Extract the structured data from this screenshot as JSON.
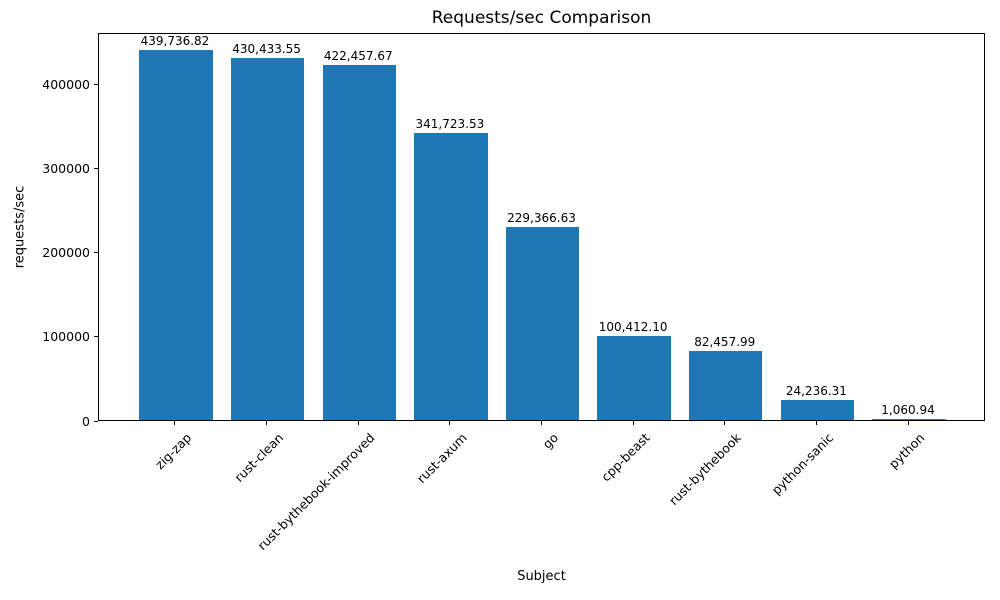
{
  "chart_data": {
    "type": "bar",
    "title": "Requests/sec Comparison",
    "xlabel": "Subject",
    "ylabel": "requests/sec",
    "categories": [
      "zig-zap",
      "rust-clean",
      "rust-bythebook-improved",
      "rust-axum",
      "go",
      "cpp-beast",
      "rust-bythebook",
      "python-sanic",
      "python"
    ],
    "values": [
      439736.82,
      430433.55,
      422457.67,
      341723.53,
      229366.63,
      100412.1,
      82457.99,
      24236.31,
      1060.94
    ],
    "value_labels": [
      "439,736.82",
      "430,433.55",
      "422,457.67",
      "341,723.53",
      "229,366.63",
      "100,412.10",
      "82,457.99",
      "24,236.31",
      "1,060.94"
    ],
    "ylim": [
      0,
      461723.66
    ],
    "yticks": [
      0,
      100000,
      200000,
      300000,
      400000
    ],
    "ytick_labels": [
      "0",
      "100000",
      "200000",
      "300000",
      "400000"
    ],
    "bar_color": "#1f77b4",
    "text_color": "#000000",
    "grid": false,
    "legend_position": "none"
  }
}
